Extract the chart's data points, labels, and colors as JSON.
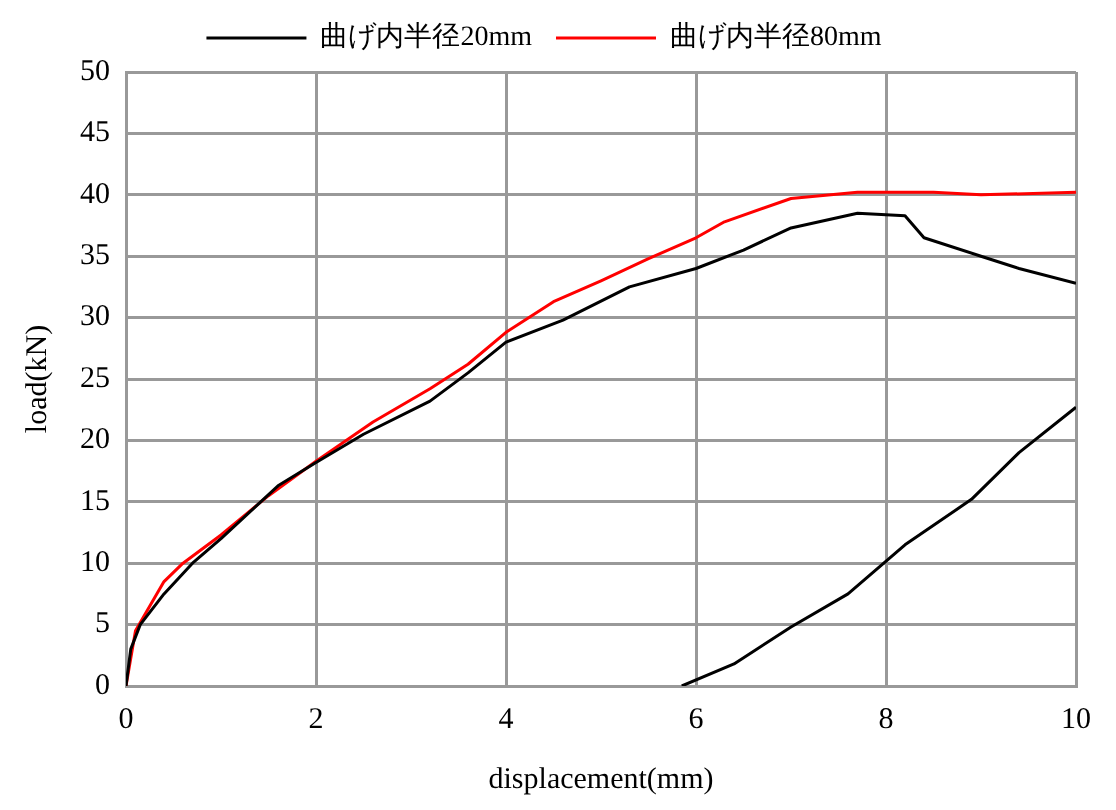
{
  "chart_data": {
    "type": "line",
    "xlabel": "displacement(mm)",
    "ylabel": "load(kN)",
    "xlim": [
      0,
      10
    ],
    "ylim": [
      0,
      50
    ],
    "xticks": [
      0,
      2,
      4,
      6,
      8,
      10
    ],
    "yticks": [
      0,
      5,
      10,
      15,
      20,
      25,
      30,
      35,
      40,
      45,
      50
    ],
    "grid": true,
    "legend": "top",
    "marker": "none",
    "line_style": "solid",
    "series": [
      {
        "name": "曲げ内半径20mm",
        "color": "#000000",
        "x": [
          0,
          0.05,
          0.15,
          0.4,
          0.7,
          1.0,
          1.6,
          2.0,
          2.5,
          3.2,
          3.6,
          4.0,
          4.6,
          5.3,
          6.0,
          6.5,
          7.0,
          7.7,
          8.2,
          8.4,
          9.0,
          9.4,
          10.0
        ],
        "values": [
          0,
          3,
          5,
          7.5,
          10,
          12,
          16.3,
          18.2,
          20.5,
          23.2,
          25.5,
          28,
          29.8,
          32.5,
          34,
          35.5,
          37.3,
          38.5,
          38.3,
          36.5,
          35,
          34,
          32.8
        ]
      },
      {
        "color": "#000000",
        "x": [
          5.85,
          6.4,
          7.0,
          7.6,
          8.2,
          8.9,
          9.4,
          10.0
        ],
        "values": [
          0,
          1.8,
          4.8,
          7.5,
          11.5,
          15.2,
          19,
          22.7
        ]
      },
      {
        "name": "曲げ内半径80mm",
        "color": "#ff0000",
        "x": [
          0,
          0.1,
          0.4,
          0.6,
          1.0,
          1.5,
          2.0,
          2.6,
          3.2,
          3.6,
          4.0,
          4.5,
          5.0,
          5.5,
          6.0,
          6.3,
          7.0,
          7.7,
          8.5,
          9.0,
          10.0
        ],
        "values": [
          0,
          4.5,
          8.5,
          10,
          12.3,
          15.5,
          18.3,
          21.5,
          24.2,
          26.2,
          28.8,
          31.3,
          33,
          34.8,
          36.5,
          37.8,
          39.7,
          40.2,
          40.2,
          40,
          40.2
        ]
      }
    ]
  }
}
